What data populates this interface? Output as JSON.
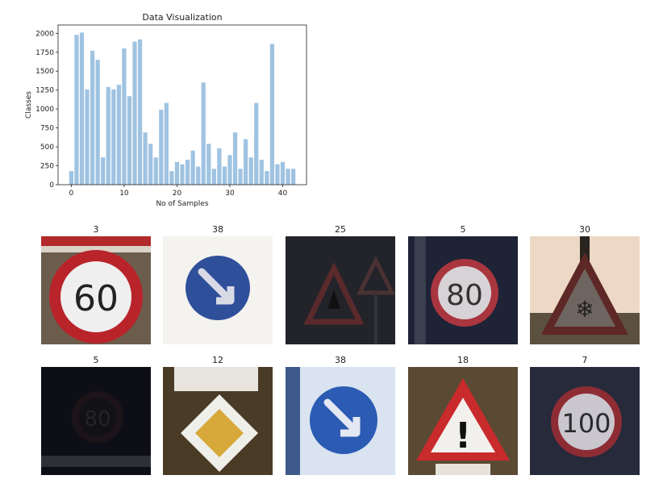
{
  "chart_data": {
    "type": "bar",
    "title": "Data Visualization",
    "xlabel": "No of Samples",
    "ylabel": "Classes",
    "x": [
      0,
      1,
      2,
      3,
      4,
      5,
      6,
      7,
      8,
      9,
      10,
      11,
      12,
      13,
      14,
      15,
      16,
      17,
      18,
      19,
      20,
      21,
      22,
      23,
      24,
      25,
      26,
      27,
      28,
      29,
      30,
      31,
      32,
      33,
      34,
      35,
      36,
      37,
      38,
      39,
      40,
      41,
      42
    ],
    "values": [
      180,
      1980,
      2010,
      1260,
      1770,
      1650,
      360,
      1290,
      1260,
      1320,
      1800,
      1170,
      1890,
      1920,
      690,
      540,
      360,
      990,
      1080,
      180,
      300,
      270,
      330,
      450,
      240,
      1350,
      540,
      210,
      480,
      240,
      390,
      690,
      210,
      600,
      360,
      1080,
      330,
      180,
      1860,
      270,
      300,
      210,
      210
    ],
    "xlim": [
      -2.5,
      44.5
    ],
    "ylim": [
      0,
      2110
    ],
    "xticks": [
      0,
      10,
      20,
      30,
      40
    ],
    "yticks": [
      0,
      250,
      500,
      750,
      1000,
      1250,
      1500,
      1750,
      2000
    ],
    "bar_color": "#9fc3e1",
    "grid": false
  },
  "samples": [
    {
      "label": "3"
    },
    {
      "label": "38"
    },
    {
      "label": "25"
    },
    {
      "label": "5"
    },
    {
      "label": "30"
    },
    {
      "label": "5"
    },
    {
      "label": "12"
    },
    {
      "label": "38"
    },
    {
      "label": "18"
    },
    {
      "label": "7"
    }
  ],
  "sign_texts": {
    "s0": "60",
    "s3": "80",
    "s5": "80",
    "s8": "!",
    "s9": "100"
  }
}
